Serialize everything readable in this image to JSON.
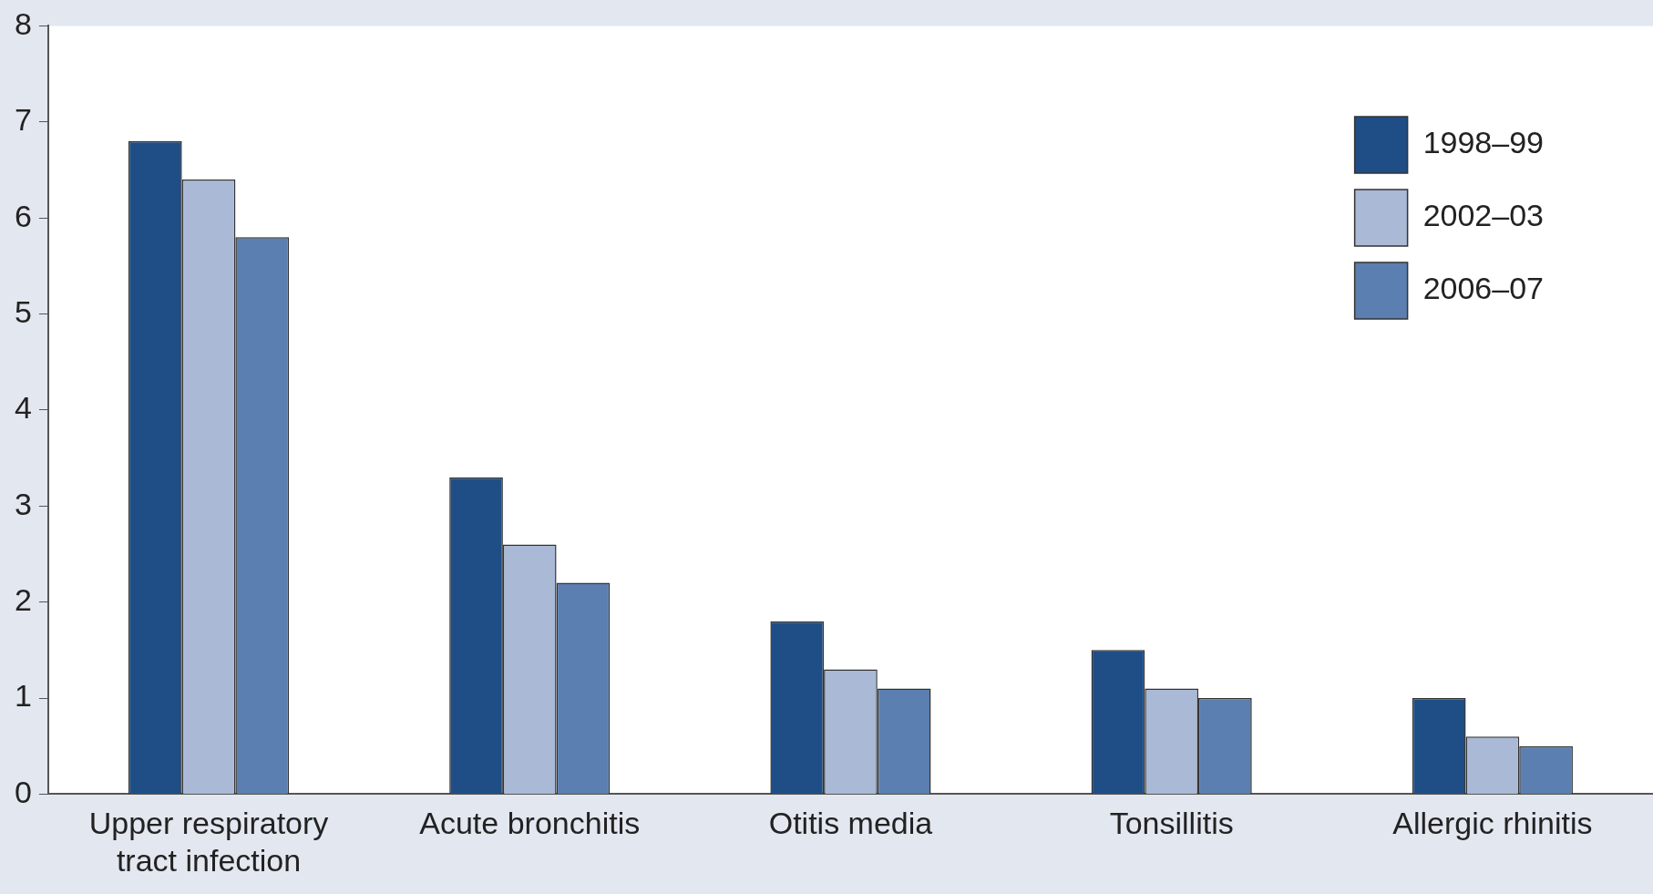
{
  "chart_data": {
    "type": "bar",
    "categories": [
      "Upper respiratory tract infection",
      "Acute bronchitis",
      "Otitis media",
      "Tonsillitis",
      "Allergic rhinitis"
    ],
    "series": [
      {
        "name": "1998–99",
        "color": "#1f4e86",
        "values": [
          6.8,
          3.3,
          1.8,
          1.5,
          1.0
        ]
      },
      {
        "name": "2002–03",
        "color": "#a9b9d6",
        "values": [
          6.4,
          2.6,
          1.3,
          1.1,
          0.6
        ]
      },
      {
        "name": "2006–07",
        "color": "#5b7fb0",
        "values": [
          5.8,
          2.2,
          1.1,
          1.0,
          0.5
        ]
      }
    ],
    "ylim": [
      0,
      8
    ],
    "yticks": [
      0,
      1,
      2,
      3,
      4,
      5,
      6,
      7,
      8
    ],
    "grid": false,
    "legend": "top right"
  }
}
